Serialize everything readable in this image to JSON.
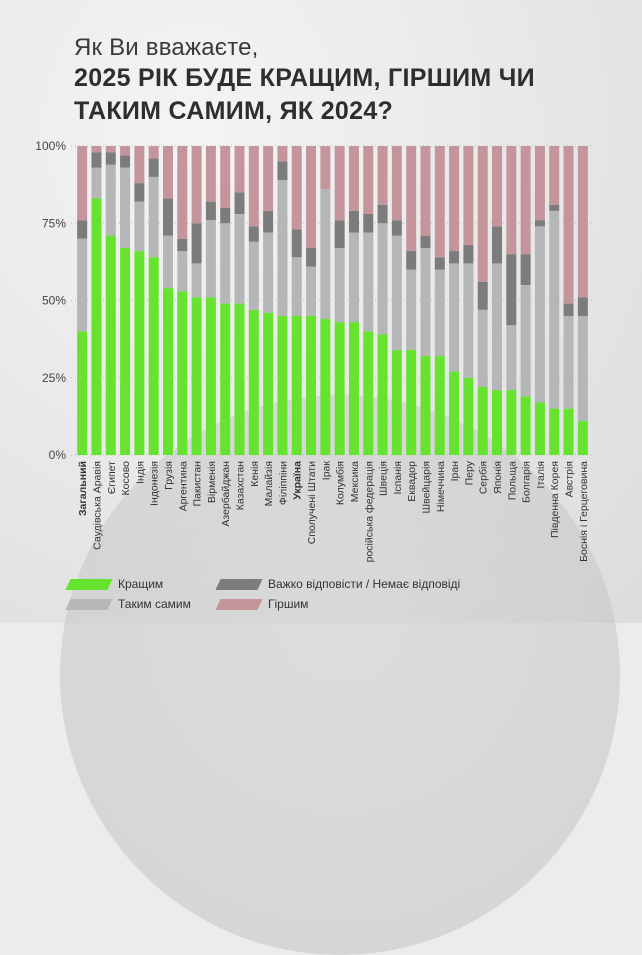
{
  "title": {
    "question": "Як Ви вважаєте,",
    "main_line1": "2025 РІК БУДЕ КРАЩИМ, ГІРШИМ ЧИ",
    "main_line2": "ТАКИМ САМИМ, ЯК 2024?"
  },
  "colors": {
    "better": "#66e32e",
    "same": "#b4b6b8",
    "hard": "#7c7c7c",
    "worse": "#c4969c"
  },
  "legend": [
    {
      "key": "better",
      "label": "Кращим"
    },
    {
      "key": "same",
      "label": "Таким самим"
    },
    {
      "key": "hard",
      "label": "Важко відповісти / Немає відповіді"
    },
    {
      "key": "worse",
      "label": "Гіршим"
    }
  ],
  "chart_data": {
    "type": "bar",
    "stacked": true,
    "y_ticks": [
      "0%",
      "25%",
      "50%",
      "75%",
      "100%"
    ],
    "ylim": [
      0,
      100
    ],
    "bold_categories": [
      "Загальний",
      "Україна"
    ],
    "categories": [
      "Загальний",
      "Саудівська Аравія",
      "Єгипет",
      "Косово",
      "Індія",
      "Індонезія",
      "Грузія",
      "Аргентина",
      "Пакистан",
      "Вірменія",
      "Азербайджан",
      "Казахстан",
      "Кенія",
      "Малайзія",
      "Філіппіни",
      "Україна",
      "Сполучені Штати",
      "Ірак",
      "Колумбія",
      "Мексика",
      "російська федерація",
      "Швеція",
      "Іспанія",
      "Еквадор",
      "Швейцарія",
      "Німеччина",
      "Іран",
      "Перу",
      "Сербія",
      "Японія",
      "Польща",
      "Болгарія",
      "Італія",
      "Південна Корея",
      "Австрія",
      "Боснія і Герцеговина"
    ],
    "series": [
      {
        "name": "Кращим",
        "values": [
          40,
          83,
          71,
          67,
          66,
          64,
          54,
          53,
          51,
          51,
          49,
          49,
          47,
          46,
          45,
          45,
          45,
          44,
          43,
          43,
          40,
          39,
          34,
          34,
          32,
          32,
          27,
          25,
          22,
          21,
          21,
          19,
          17,
          15,
          15,
          11
        ]
      },
      {
        "name": "Таким самим",
        "values": [
          30,
          10,
          23,
          26,
          16,
          26,
          17,
          13,
          11,
          25,
          26,
          29,
          22,
          26,
          44,
          19,
          16,
          42,
          24,
          29,
          32,
          36,
          37,
          26,
          35,
          28,
          35,
          37,
          25,
          41,
          21,
          36,
          57,
          64,
          30,
          34
        ]
      },
      {
        "name": "Важко відповісти / Немає відповіді",
        "values": [
          6,
          5,
          4,
          4,
          6,
          6,
          12,
          4,
          13,
          6,
          5,
          7,
          5,
          7,
          6,
          9,
          6,
          0,
          9,
          7,
          6,
          6,
          5,
          6,
          4,
          4,
          4,
          6,
          9,
          12,
          23,
          10,
          2,
          2,
          4,
          6
        ]
      },
      {
        "name": "Гіршим",
        "values": [
          24,
          2,
          2,
          3,
          12,
          4,
          17,
          30,
          25,
          18,
          20,
          15,
          26,
          21,
          5,
          27,
          33,
          14,
          24,
          21,
          22,
          19,
          24,
          34,
          29,
          36,
          34,
          32,
          44,
          26,
          35,
          35,
          24,
          19,
          51,
          49
        ]
      }
    ]
  }
}
